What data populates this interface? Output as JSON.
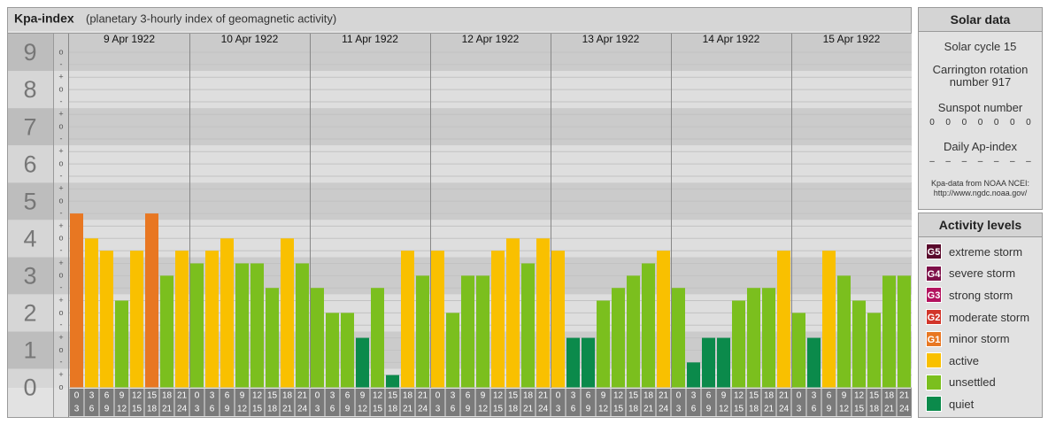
{
  "chart_data": {
    "type": "bar",
    "title": "Kpa-index",
    "subtitle": "(planetary 3-hourly index of geomagnetic activity)",
    "ylim": [
      0,
      9.5
    ],
    "yticks": [
      0,
      1,
      2,
      3,
      4,
      5,
      6,
      7,
      8,
      9
    ],
    "minor_yticks": [
      {
        "value": 9,
        "label": "o"
      },
      {
        "value": 8.67,
        "label": "-"
      },
      {
        "value": 8.33,
        "label": "+"
      },
      {
        "value": 8,
        "label": "o"
      },
      {
        "value": 7.67,
        "label": "-"
      },
      {
        "value": 7.33,
        "label": "+"
      },
      {
        "value": 7,
        "label": "o"
      },
      {
        "value": 6.67,
        "label": "-"
      },
      {
        "value": 6.33,
        "label": "+"
      },
      {
        "value": 6,
        "label": "o"
      },
      {
        "value": 5.67,
        "label": "-"
      },
      {
        "value": 5.33,
        "label": "+"
      },
      {
        "value": 5,
        "label": "o"
      },
      {
        "value": 4.67,
        "label": "-"
      },
      {
        "value": 4.33,
        "label": "+"
      },
      {
        "value": 4,
        "label": "o"
      },
      {
        "value": 3.67,
        "label": "-"
      },
      {
        "value": 3.33,
        "label": "+"
      },
      {
        "value": 3,
        "label": "o"
      },
      {
        "value": 2.67,
        "label": "-"
      },
      {
        "value": 2.33,
        "label": "+"
      },
      {
        "value": 2,
        "label": "o"
      },
      {
        "value": 1.67,
        "label": "-"
      },
      {
        "value": 1.33,
        "label": "+"
      },
      {
        "value": 1,
        "label": "o"
      },
      {
        "value": 0.67,
        "label": "-"
      },
      {
        "value": 0.33,
        "label": "+"
      },
      {
        "value": 0,
        "label": "o"
      }
    ],
    "hour_bins": [
      0,
      3,
      6,
      9,
      12,
      15,
      18,
      21,
      24
    ],
    "grid": true,
    "days": [
      {
        "date": "9 Apr 1922",
        "values": [
          4.67,
          4,
          3.67,
          2.33,
          3.67,
          4.67,
          3,
          3.67
        ],
        "colors": [
          "#e87722",
          "#f9c000",
          "#f9c000",
          "#7bbf1e",
          "#f9c000",
          "#e87722",
          "#7bbf1e",
          "#f9c000"
        ]
      },
      {
        "date": "10 Apr 1922",
        "values": [
          3.33,
          3.67,
          4,
          3.33,
          3.33,
          2.67,
          4,
          3.33
        ],
        "colors": [
          "#7bbf1e",
          "#f9c000",
          "#f9c000",
          "#7bbf1e",
          "#7bbf1e",
          "#7bbf1e",
          "#f9c000",
          "#7bbf1e"
        ]
      },
      {
        "date": "11 Apr 1922",
        "values": [
          2.67,
          2,
          2,
          1.33,
          2.67,
          0.33,
          3.67,
          3
        ],
        "colors": [
          "#7bbf1e",
          "#7bbf1e",
          "#7bbf1e",
          "#0b8a4b",
          "#7bbf1e",
          "#0b8a4b",
          "#f9c000",
          "#7bbf1e"
        ]
      },
      {
        "date": "12 Apr 1922",
        "values": [
          3.67,
          2,
          3,
          3,
          3.67,
          4,
          3.33,
          4
        ],
        "colors": [
          "#f9c000",
          "#7bbf1e",
          "#7bbf1e",
          "#7bbf1e",
          "#f9c000",
          "#f9c000",
          "#7bbf1e",
          "#f9c000"
        ]
      },
      {
        "date": "13 Apr 1922",
        "values": [
          3.67,
          1.33,
          1.33,
          2.33,
          2.67,
          3,
          3.33,
          3.67
        ],
        "colors": [
          "#f9c000",
          "#0b8a4b",
          "#0b8a4b",
          "#7bbf1e",
          "#7bbf1e",
          "#7bbf1e",
          "#7bbf1e",
          "#f9c000"
        ]
      },
      {
        "date": "14 Apr 1922",
        "values": [
          2.67,
          0.67,
          1.33,
          1.33,
          2.33,
          2.67,
          2.67,
          3.67
        ],
        "colors": [
          "#7bbf1e",
          "#0b8a4b",
          "#0b8a4b",
          "#0b8a4b",
          "#7bbf1e",
          "#7bbf1e",
          "#7bbf1e",
          "#f9c000"
        ]
      },
      {
        "date": "15 Apr 1922",
        "values": [
          2,
          1.33,
          3.67,
          3,
          2.33,
          2,
          3,
          3
        ],
        "colors": [
          "#7bbf1e",
          "#0b8a4b",
          "#f9c000",
          "#7bbf1e",
          "#7bbf1e",
          "#7bbf1e",
          "#7bbf1e",
          "#7bbf1e"
        ]
      }
    ]
  },
  "solar": {
    "title": "Solar data",
    "cycle": "Solar cycle 15",
    "carrington": "Carrington rotation number 917",
    "sunspot_label": "Sunspot number",
    "sunspot_numbers": [
      0,
      0,
      0,
      0,
      0,
      0,
      0
    ],
    "ap_label": "Daily Ap-index",
    "ap": [
      "–",
      "–",
      "–",
      "–",
      "–",
      "–",
      "–"
    ],
    "source": "Kpa-data from NOAA NCEI: http://www.ngdc.noaa.gov/"
  },
  "legend": {
    "title": "Activity levels",
    "items": [
      {
        "badge": "G5",
        "label": "extreme storm",
        "color": "#5a0a2c"
      },
      {
        "badge": "G4",
        "label": "severe storm",
        "color": "#7d1048"
      },
      {
        "badge": "G3",
        "label": "strong storm",
        "color": "#b3125e"
      },
      {
        "badge": "G2",
        "label": "moderate storm",
        "color": "#d2352a"
      },
      {
        "badge": "G1",
        "label": "minor storm",
        "color": "#e87722"
      },
      {
        "label": "active",
        "color": "#f9c000"
      },
      {
        "label": "unsettled",
        "color": "#7bbf1e"
      },
      {
        "label": "quiet",
        "color": "#0b8a4b"
      }
    ]
  }
}
